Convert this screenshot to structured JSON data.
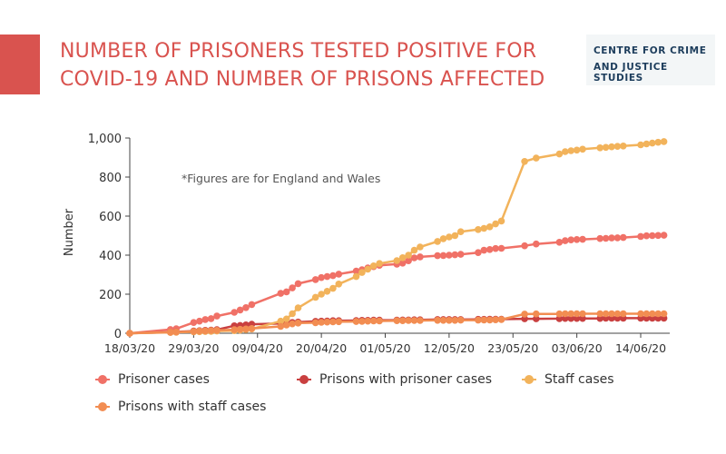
{
  "header": {
    "title_line1": "NUMBER OF PRISONERS TESTED POSITIVE FOR",
    "title_line2": "COVID-19 AND NUMBER OF PRISONS AFFECTED",
    "logo_line1": "CENTRE FOR CRIME",
    "logo_line2": "AND JUSTICE STUDIES",
    "accent_color": "#d9534f",
    "logo_text_color": "#1d3d5c"
  },
  "chart_data": {
    "type": "line",
    "title": "NUMBER OF PRISONERS TESTED POSITIVE FOR COVID-19 AND NUMBER OF PRISONS AFFECTED",
    "xlabel": "",
    "ylabel": "Number",
    "ylim": [
      0,
      1000
    ],
    "yticks": [
      0,
      200,
      400,
      600,
      800,
      1000
    ],
    "ytick_labels": [
      "0",
      "200",
      "400",
      "600",
      "800",
      "1,000"
    ],
    "xlim": [
      "2020-03-18",
      "2020-06-19"
    ],
    "xticks": [
      "2020-03-18",
      "2020-03-29",
      "2020-04-09",
      "2020-04-20",
      "2020-05-01",
      "2020-05-12",
      "2020-05-23",
      "2020-06-03",
      "2020-06-14"
    ],
    "xtick_labels": [
      "18/03/20",
      "29/03/20",
      "09/04/20",
      "20/04/20",
      "01/05/20",
      "12/05/20",
      "23/05/20",
      "03/06/20",
      "14/06/20"
    ],
    "annotation": "*Figures are for England and Wales",
    "grid": false,
    "legend_position": "bottom",
    "series": [
      {
        "name": "Prisoner cases",
        "color": "#f07167",
        "points": [
          [
            "2020-03-18",
            0
          ],
          [
            "2020-03-25",
            19
          ],
          [
            "2020-03-26",
            23
          ],
          [
            "2020-03-29",
            55
          ],
          [
            "2020-03-30",
            62
          ],
          [
            "2020-03-31",
            70
          ],
          [
            "2020-04-01",
            75
          ],
          [
            "2020-04-02",
            88
          ],
          [
            "2020-04-05",
            107
          ],
          [
            "2020-04-06",
            119
          ],
          [
            "2020-04-07",
            131
          ],
          [
            "2020-04-08",
            147
          ],
          [
            "2020-04-13",
            204
          ],
          [
            "2020-04-14",
            212
          ],
          [
            "2020-04-15",
            232
          ],
          [
            "2020-04-16",
            254
          ],
          [
            "2020-04-19",
            275
          ],
          [
            "2020-04-20",
            285
          ],
          [
            "2020-04-21",
            290
          ],
          [
            "2020-04-22",
            295
          ],
          [
            "2020-04-23",
            303
          ],
          [
            "2020-04-26",
            318
          ],
          [
            "2020-04-27",
            325
          ],
          [
            "2020-04-28",
            335
          ],
          [
            "2020-04-29",
            341
          ],
          [
            "2020-04-30",
            348
          ],
          [
            "2020-05-03",
            354
          ],
          [
            "2020-05-04",
            359
          ],
          [
            "2020-05-05",
            371
          ],
          [
            "2020-05-06",
            386
          ],
          [
            "2020-05-07",
            391
          ],
          [
            "2020-05-10",
            397
          ],
          [
            "2020-05-11",
            398
          ],
          [
            "2020-05-12",
            400
          ],
          [
            "2020-05-13",
            402
          ],
          [
            "2020-05-14",
            404
          ],
          [
            "2020-05-17",
            413
          ],
          [
            "2020-05-18",
            425
          ],
          [
            "2020-05-19",
            429
          ],
          [
            "2020-05-20",
            434
          ],
          [
            "2020-05-21",
            435
          ],
          [
            "2020-05-25",
            448
          ],
          [
            "2020-05-27",
            457
          ],
          [
            "2020-05-31",
            466
          ],
          [
            "2020-06-01",
            474
          ],
          [
            "2020-06-02",
            478
          ],
          [
            "2020-06-03",
            480
          ],
          [
            "2020-06-04",
            481
          ],
          [
            "2020-06-07",
            485
          ],
          [
            "2020-06-08",
            486
          ],
          [
            "2020-06-09",
            488
          ],
          [
            "2020-06-10",
            489
          ],
          [
            "2020-06-11",
            490
          ],
          [
            "2020-06-14",
            496
          ],
          [
            "2020-06-15",
            499
          ],
          [
            "2020-06-16",
            500
          ],
          [
            "2020-06-17",
            501
          ],
          [
            "2020-06-18",
            502
          ]
        ]
      },
      {
        "name": "Prisons with prisoner cases",
        "color": "#c94040",
        "points": [
          [
            "2020-03-18",
            0
          ],
          [
            "2020-03-25",
            5
          ],
          [
            "2020-03-26",
            7
          ],
          [
            "2020-03-29",
            11
          ],
          [
            "2020-03-30",
            13
          ],
          [
            "2020-03-31",
            15
          ],
          [
            "2020-04-01",
            16
          ],
          [
            "2020-04-02",
            18
          ],
          [
            "2020-04-05",
            38
          ],
          [
            "2020-04-06",
            40
          ],
          [
            "2020-04-07",
            43
          ],
          [
            "2020-04-08",
            46
          ],
          [
            "2020-04-13",
            50
          ],
          [
            "2020-04-14",
            52
          ],
          [
            "2020-04-15",
            55
          ],
          [
            "2020-04-16",
            57
          ],
          [
            "2020-04-19",
            61
          ],
          [
            "2020-04-20",
            62
          ],
          [
            "2020-04-21",
            63
          ],
          [
            "2020-04-22",
            64
          ],
          [
            "2020-04-23",
            64
          ],
          [
            "2020-04-26",
            65
          ],
          [
            "2020-04-27",
            66
          ],
          [
            "2020-04-28",
            66
          ],
          [
            "2020-04-29",
            67
          ],
          [
            "2020-04-30",
            67
          ],
          [
            "2020-05-03",
            67
          ],
          [
            "2020-05-04",
            68
          ],
          [
            "2020-05-05",
            68
          ],
          [
            "2020-05-06",
            69
          ],
          [
            "2020-05-07",
            69
          ],
          [
            "2020-05-10",
            70
          ],
          [
            "2020-05-11",
            70
          ],
          [
            "2020-05-12",
            70
          ],
          [
            "2020-05-13",
            70
          ],
          [
            "2020-05-14",
            70
          ],
          [
            "2020-05-17",
            71
          ],
          [
            "2020-05-18",
            71
          ],
          [
            "2020-05-19",
            72
          ],
          [
            "2020-05-20",
            72
          ],
          [
            "2020-05-21",
            72
          ],
          [
            "2020-05-25",
            74
          ],
          [
            "2020-05-27",
            74
          ],
          [
            "2020-05-31",
            75
          ],
          [
            "2020-06-01",
            76
          ],
          [
            "2020-06-02",
            76
          ],
          [
            "2020-06-03",
            76
          ],
          [
            "2020-06-04",
            76
          ],
          [
            "2020-06-07",
            76
          ],
          [
            "2020-06-08",
            77
          ],
          [
            "2020-06-09",
            77
          ],
          [
            "2020-06-10",
            77
          ],
          [
            "2020-06-11",
            77
          ],
          [
            "2020-06-14",
            77
          ],
          [
            "2020-06-15",
            77
          ],
          [
            "2020-06-16",
            77
          ],
          [
            "2020-06-17",
            77
          ],
          [
            "2020-06-18",
            77
          ]
        ]
      },
      {
        "name": "Staff cases",
        "color": "#f2b35b",
        "points": [
          [
            "2020-03-18",
            0
          ],
          [
            "2020-03-25",
            4
          ],
          [
            "2020-03-26",
            5
          ],
          [
            "2020-03-29",
            7
          ],
          [
            "2020-03-30",
            8
          ],
          [
            "2020-03-31",
            9
          ],
          [
            "2020-04-01",
            10
          ],
          [
            "2020-04-02",
            11
          ],
          [
            "2020-04-05",
            13
          ],
          [
            "2020-04-06",
            16
          ],
          [
            "2020-04-07",
            19
          ],
          [
            "2020-04-08",
            22
          ],
          [
            "2020-04-13",
            62
          ],
          [
            "2020-04-14",
            73
          ],
          [
            "2020-04-15",
            100
          ],
          [
            "2020-04-16",
            130
          ],
          [
            "2020-04-19",
            184
          ],
          [
            "2020-04-20",
            200
          ],
          [
            "2020-04-21",
            215
          ],
          [
            "2020-04-22",
            230
          ],
          [
            "2020-04-23",
            252
          ],
          [
            "2020-04-26",
            290
          ],
          [
            "2020-04-27",
            311
          ],
          [
            "2020-04-28",
            328
          ],
          [
            "2020-04-29",
            345
          ],
          [
            "2020-04-30",
            357
          ],
          [
            "2020-05-03",
            372
          ],
          [
            "2020-05-04",
            387
          ],
          [
            "2020-05-05",
            400
          ],
          [
            "2020-05-06",
            425
          ],
          [
            "2020-05-07",
            442
          ],
          [
            "2020-05-10",
            470
          ],
          [
            "2020-05-11",
            484
          ],
          [
            "2020-05-12",
            493
          ],
          [
            "2020-05-13",
            500
          ],
          [
            "2020-05-14",
            520
          ],
          [
            "2020-05-17",
            531
          ],
          [
            "2020-05-18",
            537
          ],
          [
            "2020-05-19",
            545
          ],
          [
            "2020-05-20",
            560
          ],
          [
            "2020-05-21",
            575
          ],
          [
            "2020-05-25",
            880
          ],
          [
            "2020-05-27",
            897
          ],
          [
            "2020-05-31",
            918
          ],
          [
            "2020-06-01",
            930
          ],
          [
            "2020-06-02",
            935
          ],
          [
            "2020-06-03",
            938
          ],
          [
            "2020-06-04",
            943
          ],
          [
            "2020-06-07",
            950
          ],
          [
            "2020-06-08",
            952
          ],
          [
            "2020-06-09",
            955
          ],
          [
            "2020-06-10",
            957
          ],
          [
            "2020-06-11",
            959
          ],
          [
            "2020-06-14",
            965
          ],
          [
            "2020-06-15",
            970
          ],
          [
            "2020-06-16",
            974
          ],
          [
            "2020-06-17",
            978
          ],
          [
            "2020-06-18",
            982
          ]
        ]
      },
      {
        "name": "Prisons with staff cases",
        "color": "#f28d52",
        "points": [
          [
            "2020-03-18",
            0
          ],
          [
            "2020-03-25",
            5
          ],
          [
            "2020-03-26",
            6
          ],
          [
            "2020-03-29",
            9
          ],
          [
            "2020-03-30",
            11
          ],
          [
            "2020-03-31",
            12
          ],
          [
            "2020-04-01",
            14
          ],
          [
            "2020-04-02",
            15
          ],
          [
            "2020-04-05",
            18
          ],
          [
            "2020-04-06",
            20
          ],
          [
            "2020-04-07",
            22
          ],
          [
            "2020-04-08",
            24
          ],
          [
            "2020-04-13",
            35
          ],
          [
            "2020-04-14",
            42
          ],
          [
            "2020-04-15",
            48
          ],
          [
            "2020-04-16",
            52
          ],
          [
            "2020-04-19",
            54
          ],
          [
            "2020-04-20",
            56
          ],
          [
            "2020-04-21",
            57
          ],
          [
            "2020-04-22",
            58
          ],
          [
            "2020-04-23",
            59
          ],
          [
            "2020-04-26",
            60
          ],
          [
            "2020-04-27",
            61
          ],
          [
            "2020-04-28",
            62
          ],
          [
            "2020-04-29",
            63
          ],
          [
            "2020-04-30",
            63
          ],
          [
            "2020-05-03",
            64
          ],
          [
            "2020-05-04",
            64
          ],
          [
            "2020-05-05",
            65
          ],
          [
            "2020-05-06",
            65
          ],
          [
            "2020-05-07",
            65
          ],
          [
            "2020-05-10",
            66
          ],
          [
            "2020-05-11",
            66
          ],
          [
            "2020-05-12",
            66
          ],
          [
            "2020-05-13",
            66
          ],
          [
            "2020-05-14",
            67
          ],
          [
            "2020-05-17",
            67
          ],
          [
            "2020-05-18",
            68
          ],
          [
            "2020-05-19",
            68
          ],
          [
            "2020-05-20",
            69
          ],
          [
            "2020-05-21",
            70
          ],
          [
            "2020-05-25",
            98
          ],
          [
            "2020-05-27",
            99
          ],
          [
            "2020-05-31",
            99
          ],
          [
            "2020-06-01",
            100
          ],
          [
            "2020-06-02",
            100
          ],
          [
            "2020-06-03",
            100
          ],
          [
            "2020-06-04",
            100
          ],
          [
            "2020-06-07",
            100
          ],
          [
            "2020-06-08",
            100
          ],
          [
            "2020-06-09",
            100
          ],
          [
            "2020-06-10",
            100
          ],
          [
            "2020-06-11",
            100
          ],
          [
            "2020-06-14",
            100
          ],
          [
            "2020-06-15",
            100
          ],
          [
            "2020-06-16",
            100
          ],
          [
            "2020-06-17",
            100
          ],
          [
            "2020-06-18",
            100
          ]
        ]
      }
    ]
  },
  "legend": {
    "items": [
      {
        "label": "Prisoner cases",
        "color": "#f07167"
      },
      {
        "label": "Prisons with prisoner cases",
        "color": "#c94040"
      },
      {
        "label": "Staff cases",
        "color": "#f2b35b"
      },
      {
        "label": "Prisons with staff cases",
        "color": "#f28d52"
      }
    ]
  }
}
